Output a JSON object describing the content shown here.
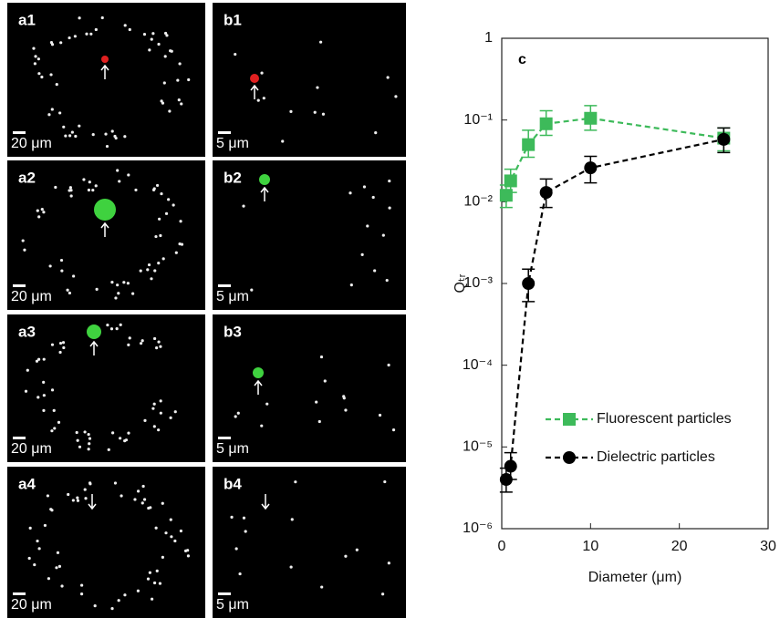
{
  "panels": [
    {
      "label": "a1",
      "scale": "20 μm"
    },
    {
      "label": "b1",
      "scale": "5 μm"
    },
    {
      "label": "a2",
      "scale": "20 μm"
    },
    {
      "label": "b2",
      "scale": "5 μm"
    },
    {
      "label": "a3",
      "scale": "20 μm"
    },
    {
      "label": "b3",
      "scale": "5 μm"
    },
    {
      "label": "a4",
      "scale": "20 μm"
    },
    {
      "label": "b4",
      "scale": "5 μm"
    }
  ],
  "chart_data": {
    "type": "scatter",
    "panel_label": "c",
    "x_label": "Diameter (μm)",
    "y_label": "Qₜᵣ",
    "xlim": [
      0,
      30
    ],
    "xticks": [
      0,
      10,
      20,
      30
    ],
    "ylim": [
      1e-06,
      1
    ],
    "log_y": true,
    "yticks": [
      {
        "value": 1,
        "label": "1"
      },
      {
        "value": 0.1,
        "label": "10⁻¹"
      },
      {
        "value": 0.01,
        "label": "10⁻²"
      },
      {
        "value": 0.001,
        "label": "10⁻³"
      },
      {
        "value": 0.0001,
        "label": "10⁻⁴"
      },
      {
        "value": 1e-05,
        "label": "10⁻⁵"
      },
      {
        "value": 1e-06,
        "label": "10⁻⁶"
      }
    ],
    "series": [
      {
        "name": "Fluorescent particles",
        "color": "#3dba5a",
        "marker": "square",
        "x": [
          0.5,
          1,
          3,
          5,
          10,
          25
        ],
        "values": [
          0.012,
          0.018,
          0.05,
          0.09,
          0.105,
          0.06
        ],
        "y_low": [
          0.0085,
          0.013,
          0.035,
          0.065,
          0.075,
          0.042
        ],
        "y_high": [
          0.016,
          0.025,
          0.075,
          0.13,
          0.15,
          0.08
        ]
      },
      {
        "name": "Dielectric particles",
        "color": "#000000",
        "marker": "circle",
        "x": [
          0.5,
          1,
          3,
          5,
          10,
          25
        ],
        "values": [
          4e-06,
          5.8e-06,
          0.001,
          0.013,
          0.026,
          0.058
        ],
        "y_low": [
          2.8e-06,
          4e-06,
          0.0006,
          0.0085,
          0.017,
          0.04
        ],
        "y_high": [
          5.5e-06,
          8.5e-06,
          0.0015,
          0.019,
          0.036,
          0.08
        ]
      }
    ]
  }
}
